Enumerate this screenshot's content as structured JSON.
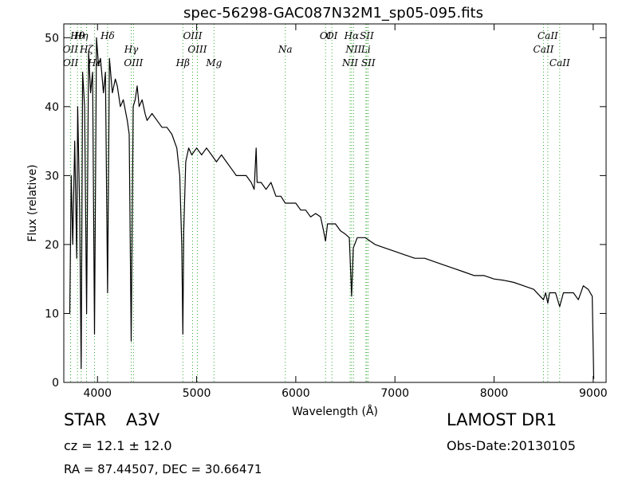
{
  "chart_data": {
    "type": "line",
    "title": "spec-56298-GAC087N32M1_sp05-095.fits",
    "xlabel": "Wavelength (Å)",
    "ylabel": "Flux (relative)",
    "color": "#000000",
    "annotation_color": "#33aa33",
    "xlim": [
      3660,
      9130
    ],
    "ylim": [
      0,
      52
    ],
    "xticks": [
      4000,
      5000,
      6000,
      7000,
      8000,
      9000
    ],
    "yticks": [
      0,
      10,
      20,
      30,
      40,
      50
    ],
    "grid": false,
    "x": [
      3720,
      3735,
      3750,
      3770,
      3790,
      3800,
      3820,
      3835,
      3850,
      3870,
      3890,
      3910,
      3930,
      3950,
      3970,
      3990,
      4010,
      4030,
      4060,
      4080,
      4102,
      4120,
      4150,
      4180,
      4200,
      4230,
      4260,
      4300,
      4320,
      4340,
      4360,
      4380,
      4400,
      4420,
      4450,
      4480,
      4500,
      4550,
      4600,
      4650,
      4700,
      4750,
      4800,
      4830,
      4850,
      4861,
      4870,
      4890,
      4920,
      4950,
      5000,
      5050,
      5100,
      5150,
      5200,
      5250,
      5300,
      5350,
      5400,
      5450,
      5500,
      5550,
      5580,
      5600,
      5610,
      5650,
      5700,
      5750,
      5800,
      5850,
      5894,
      5950,
      6000,
      6050,
      6100,
      6150,
      6200,
      6250,
      6280,
      6300,
      6320,
      6400,
      6450,
      6500,
      6540,
      6563,
      6580,
      6620,
      6700,
      6750,
      6800,
      6900,
      7000,
      7100,
      7200,
      7300,
      7400,
      7500,
      7600,
      7700,
      7800,
      7900,
      8000,
      8100,
      8200,
      8300,
      8400,
      8498,
      8520,
      8542,
      8560,
      8620,
      8662,
      8700,
      8800,
      8850,
      8900,
      8950,
      8990,
      9000,
      9005
    ],
    "values": [
      10,
      30,
      20,
      35,
      18,
      40,
      25,
      2,
      45,
      40,
      10,
      48,
      42,
      45,
      7,
      50,
      46,
      47,
      42,
      45,
      13,
      47,
      42,
      44,
      43,
      40,
      41,
      38,
      36,
      6,
      40,
      41,
      43,
      40,
      41,
      39,
      38,
      39,
      38,
      37,
      37,
      36,
      34,
      30,
      20,
      7,
      22,
      32,
      34,
      33,
      34,
      33,
      34,
      33,
      32,
      33,
      32,
      31,
      30,
      30,
      30,
      29,
      28,
      34,
      29,
      29,
      28,
      29,
      27,
      27,
      26,
      26,
      26,
      25,
      25,
      24,
      24.5,
      24,
      22,
      20.5,
      23,
      23,
      22,
      21.5,
      21,
      12.5,
      19.5,
      21,
      21,
      20.5,
      20,
      19.5,
      19,
      18.5,
      18,
      18,
      17.5,
      17,
      16.5,
      16,
      15.5,
      15.5,
      15,
      14.8,
      14.5,
      14,
      13.5,
      12,
      13,
      11.5,
      13,
      13,
      11,
      13,
      13,
      12,
      14,
      13.5,
      12.5,
      5,
      0.5
    ],
    "annotations": [
      {
        "label": "Hθ",
        "x": 3798
      },
      {
        "label": "OII",
        "x": 3727
      },
      {
        "label": "OII",
        "x": 3729
      },
      {
        "label": "Hη",
        "x": 3835
      },
      {
        "label": "Hζ",
        "x": 3889
      },
      {
        "label": "Hε",
        "x": 3970
      },
      {
        "label": "Hδ",
        "x": 4102
      },
      {
        "label": "Hγ",
        "x": 4340
      },
      {
        "label": "OIII",
        "x": 4363
      },
      {
        "label": "OIII",
        "x": 4959
      },
      {
        "label": "OIII",
        "x": 5007
      },
      {
        "label": "Hβ",
        "x": 4861
      },
      {
        "label": "OI",
        "x": 6300
      },
      {
        "label": "Na",
        "x": 5894
      },
      {
        "label": "Mg",
        "x": 5175
      },
      {
        "label": "Hα",
        "x": 6563
      },
      {
        "label": "NII",
        "x": 6583
      },
      {
        "label": "NII",
        "x": 6548
      },
      {
        "label": "SII",
        "x": 6716
      },
      {
        "label": "Li",
        "x": 6707
      },
      {
        "label": "SII",
        "x": 6731
      },
      {
        "label": "CaII",
        "x": 8542
      },
      {
        "label": "CaII",
        "x": 8498
      },
      {
        "label": "CaII",
        "x": 8662
      },
      {
        "label": "OI",
        "x": 6364
      }
    ]
  },
  "footer": {
    "object_class": "STAR",
    "subclass": "A3V",
    "cz": "cz = 12.1 ± 12.0",
    "coords": "RA = 87.44507, DEC = 30.66471",
    "survey": "LAMOST DR1",
    "obs_date": "Obs-Date:20130105"
  }
}
